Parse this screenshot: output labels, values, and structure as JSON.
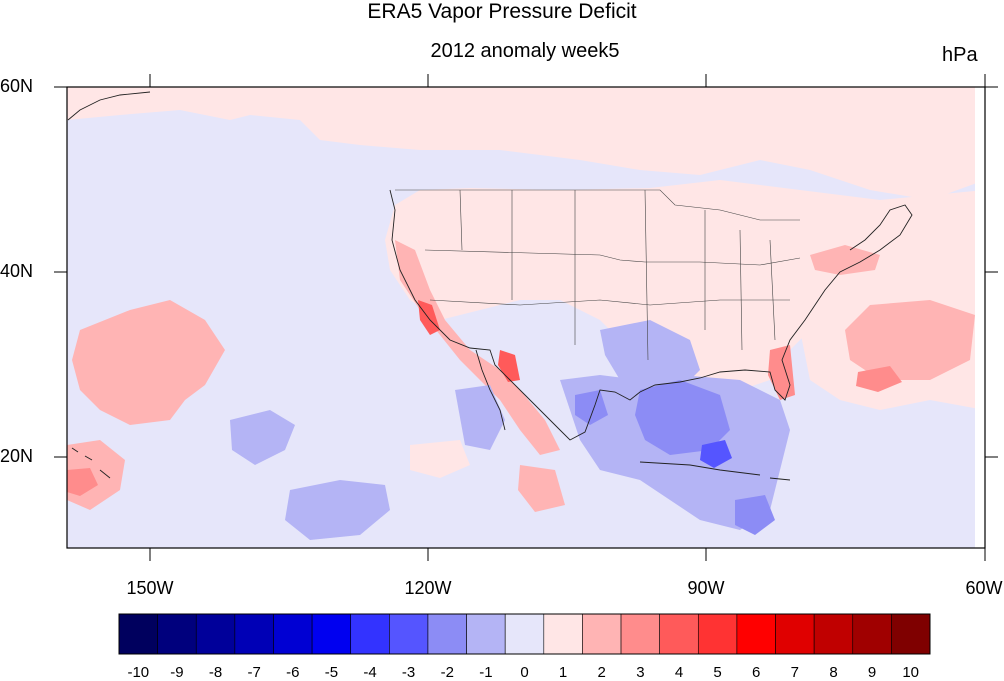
{
  "title": "ERA5 Vapor Pressure Deficit",
  "subtitle": "2012 anomaly week5",
  "units": "hPa",
  "map": {
    "lon_range": [
      -160,
      -60
    ],
    "lat_range": [
      10,
      60
    ],
    "lat_ticks": [
      "60N",
      "40N",
      "20N"
    ],
    "lon_ticks": [
      "150W",
      "120W",
      "90W",
      "60W"
    ],
    "features": [
      "coastlines",
      "us-state-boundaries",
      "filled-contours"
    ]
  },
  "colorbar": {
    "labels": [
      "-10",
      "-9",
      "-8",
      "-7",
      "-6",
      "-5",
      "-4",
      "-3",
      "-2",
      "-1",
      "0",
      "1",
      "2",
      "3",
      "4",
      "5",
      "6",
      "7",
      "8",
      "9",
      "10"
    ],
    "colors": [
      "#00005e",
      "#00007d",
      "#00009a",
      "#0000b6",
      "#0000d3",
      "#0000f0",
      "#3333ff",
      "#5555ff",
      "#8c8cf5",
      "#b4b4f5",
      "#e6e6fa",
      "#ffe6e6",
      "#ffb4b4",
      "#ff8c8c",
      "#ff5a5a",
      "#ff3333",
      "#ff0000",
      "#e00000",
      "#c00000",
      "#a00000",
      "#7f0000"
    ]
  }
}
